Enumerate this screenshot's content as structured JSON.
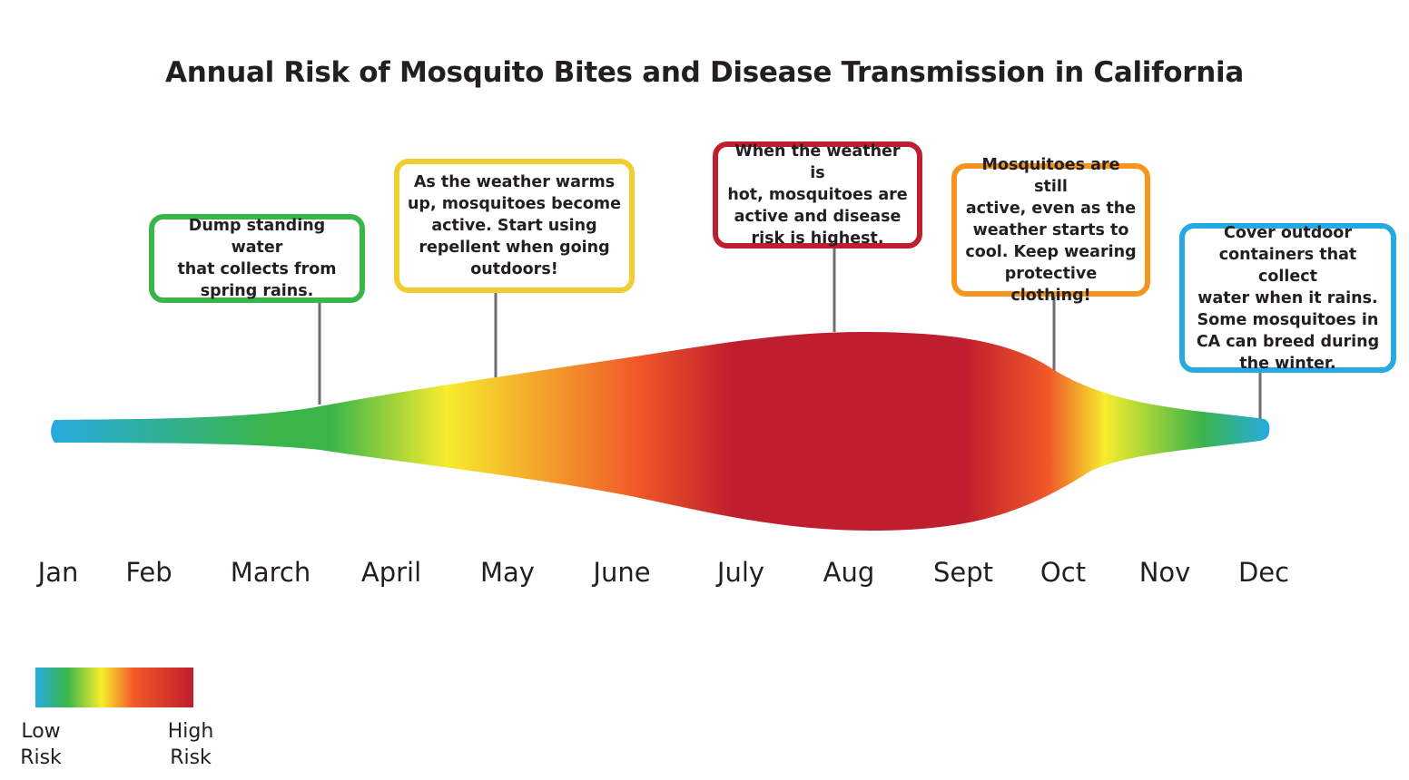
{
  "title": "Annual Risk of Mosquito Bites and Disease Transmission in California",
  "months": [
    "Jan",
    "Feb",
    "March",
    "April",
    "May",
    "June",
    "July",
    "Aug",
    "Sept",
    "Oct",
    "Nov",
    "Dec"
  ],
  "callouts": [
    {
      "text": "Dump standing water\nthat collects from\nspring rains.",
      "color": "#3ab54a"
    },
    {
      "text": "As the weather warms\nup, mosquitoes become\nactive. Start using\nrepellent when going\noutdoors!",
      "color": "#f2cd30"
    },
    {
      "text": "When the weather is\nhot, mosquitoes are\nactive and disease\nrisk is highest.",
      "color": "#be1e2d"
    },
    {
      "text": "Mosquitoes are still\nactive, even as the\nweather starts to\ncool. Keep wearing\nprotective clothing!",
      "color": "#f7941d"
    },
    {
      "text": "Cover outdoor\ncontainers that collect\nwater when it rains.\nSome mosquitoes in\nCA can breed during\nthe winter.",
      "color": "#27aae1"
    }
  ],
  "risk_colors": {
    "low_blue": "#27aae1",
    "green": "#39b54a",
    "yellow": "#f7ec2d",
    "orange": "#f15a29",
    "red": "#be1e2d"
  },
  "legend": {
    "low_line1": "Low",
    "low_line2": "Risk",
    "high_line1": "High",
    "high_line2": "Risk"
  }
}
